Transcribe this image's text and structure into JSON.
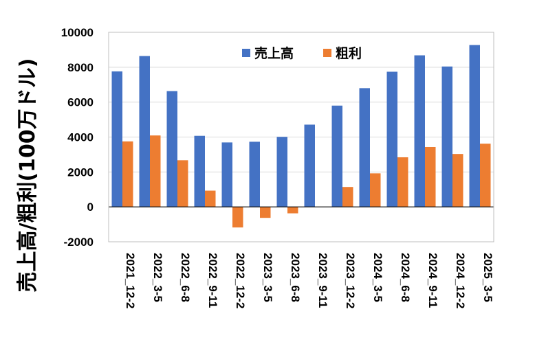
{
  "chart_data": {
    "type": "bar",
    "ylabel": "売上高/粗利(100万ドル)",
    "xlabel": "",
    "title": "",
    "ylim": [
      -2000,
      10000
    ],
    "yticks": [
      -2000,
      0,
      2000,
      4000,
      6000,
      8000,
      10000
    ],
    "grid": true,
    "legend_position": "top-right",
    "categories": [
      "2021_12-2",
      "2022_3-5",
      "2022_6-8",
      "2022_9-11",
      "2022_12-2",
      "2023_3-5",
      "2023_6-8",
      "2023_9-11",
      "2023_12-2",
      "2024_3-5",
      "2024_6-8",
      "2024_9-11",
      "2024_12-2",
      "2025_3-5"
    ],
    "series": [
      {
        "name": "売上高",
        "color": "#4472C4",
        "values": [
          7760,
          8640,
          6630,
          4070,
          3690,
          3730,
          4010,
          4710,
          5800,
          6800,
          7740,
          8680,
          8040,
          9270
        ]
      },
      {
        "name": "粗利",
        "color": "#ED7D31",
        "values": [
          3750,
          4090,
          2670,
          930,
          -1180,
          -630,
          -370,
          0,
          1140,
          1920,
          2840,
          3430,
          3030,
          3620
        ]
      }
    ]
  }
}
